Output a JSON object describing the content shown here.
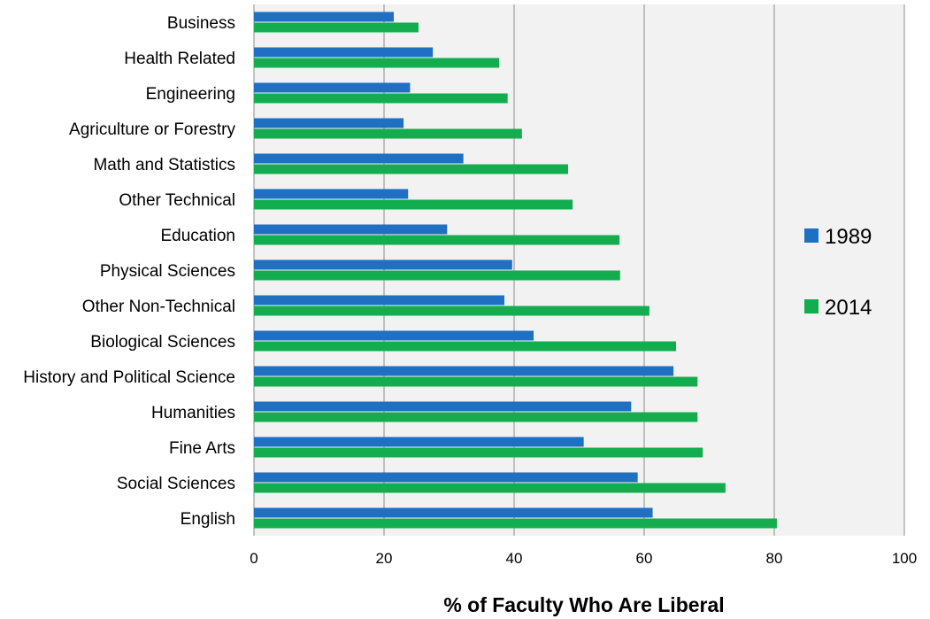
{
  "chart_data": {
    "type": "bar",
    "orientation": "horizontal",
    "title": "",
    "xlabel": "% of Faculty Who Are Liberal",
    "ylabel": "",
    "xlim": [
      0,
      100
    ],
    "xticks": [
      0,
      20,
      40,
      60,
      80,
      100
    ],
    "grid": "vertical",
    "legend_position": "right",
    "categories": [
      "Business",
      "Health Related",
      "Engineering",
      "Agriculture or Forestry",
      "Math and Statistics",
      "Other Technical",
      "Education ",
      "Physical Sciences",
      "Other Non-Technical",
      "Biological Sciences",
      "History and Political Science",
      "Humanities",
      "Fine Arts",
      "Social Sciences",
      "English"
    ],
    "series": [
      {
        "name": "1989",
        "color": "#1f6fc2",
        "values": [
          21.5,
          27.5,
          24,
          23,
          32.2,
          23.7,
          29.7,
          39.7,
          38.5,
          43,
          64.5,
          58,
          50.7,
          59,
          61.3
        ]
      },
      {
        "name": "2014",
        "color": "#13ad4f",
        "values": [
          25.3,
          37.7,
          39,
          41.2,
          48.3,
          49,
          56.2,
          56.3,
          60.8,
          64.9,
          68.2,
          68.2,
          69,
          72.5,
          80.4
        ]
      }
    ]
  }
}
